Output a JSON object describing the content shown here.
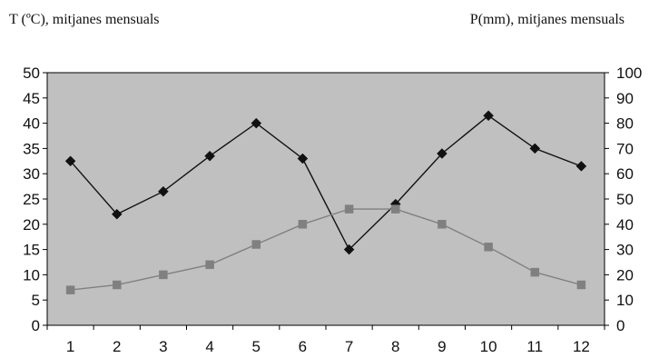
{
  "chart_data": {
    "type": "line",
    "left_axis_title": "T (ºC), mitjanes mensuals",
    "right_axis_title": "P(mm), mitjanes mensuals",
    "x": [
      "1",
      "2",
      "3",
      "4",
      "5",
      "6",
      "7",
      "8",
      "9",
      "10",
      "11",
      "12"
    ],
    "y_left": {
      "range": [
        0,
        50
      ],
      "ticks": [
        "0",
        "5",
        "10",
        "15",
        "20",
        "25",
        "30",
        "35",
        "40",
        "45",
        "50"
      ]
    },
    "y_right": {
      "range": [
        0,
        100
      ],
      "ticks": [
        "0",
        "10",
        "20",
        "30",
        "40",
        "50",
        "60",
        "70",
        "80",
        "90",
        "100"
      ]
    },
    "series": [
      {
        "axis": "right",
        "marker": "diamond",
        "color": "#111111",
        "values": [
          65,
          44,
          53,
          67,
          80,
          66,
          30,
          48,
          68,
          83,
          70,
          63
        ]
      },
      {
        "axis": "left",
        "marker": "square",
        "color": "#808080",
        "values": [
          7,
          8,
          10,
          12,
          16,
          20,
          23,
          23,
          20,
          15.5,
          10.5,
          8
        ]
      }
    ],
    "plot_background": "#c0c0c0",
    "grid": false,
    "legend": "none"
  }
}
